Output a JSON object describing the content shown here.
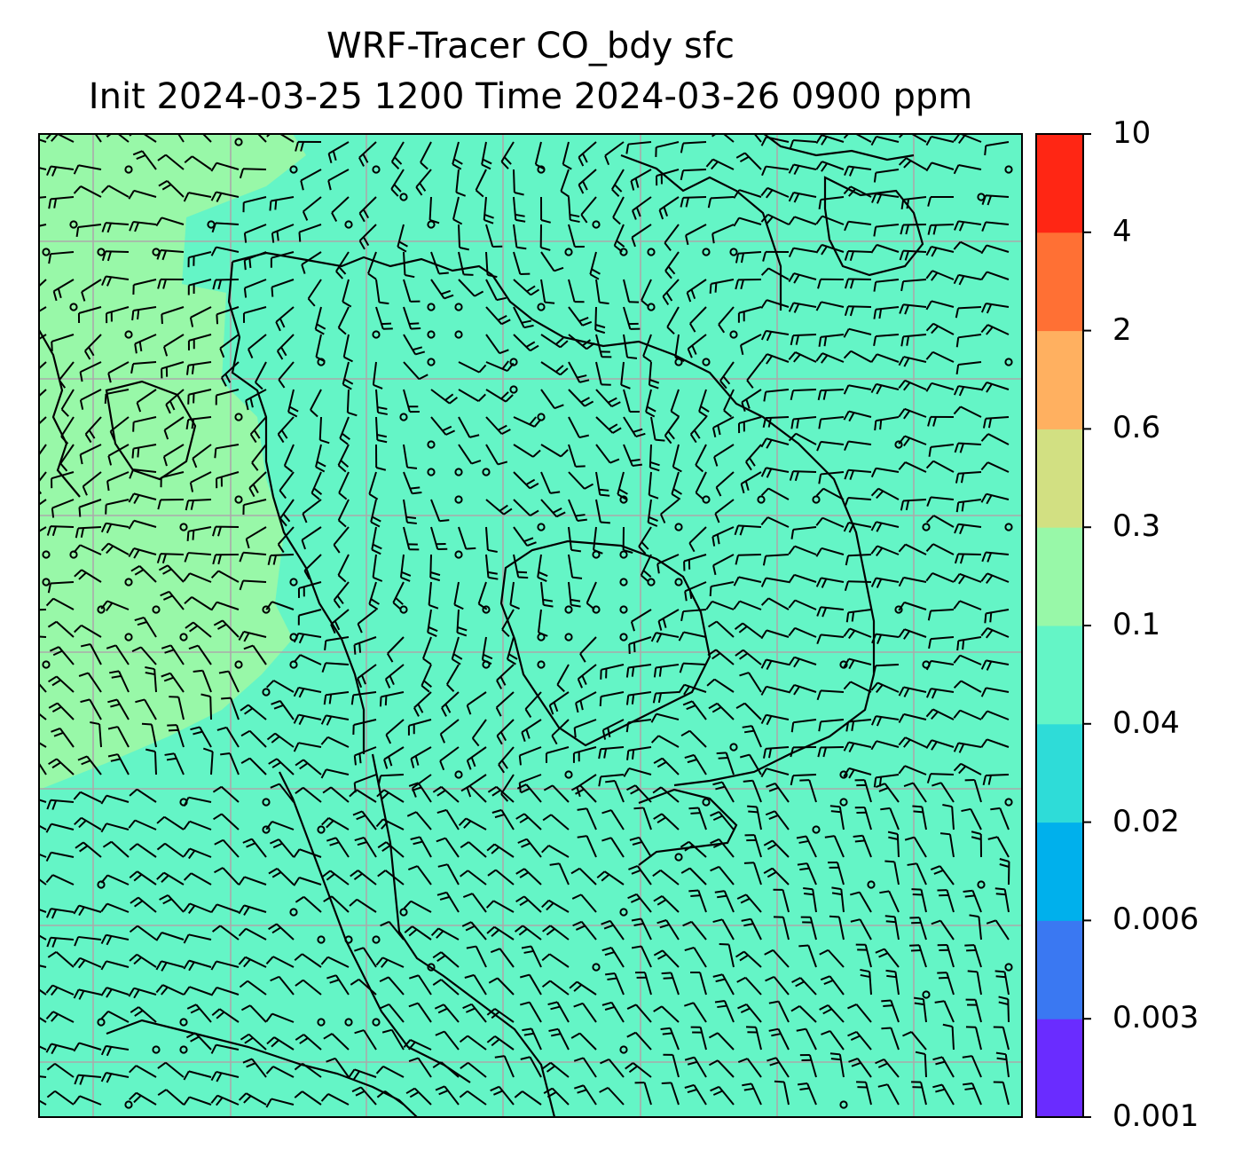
{
  "figure": {
    "title_line1": "WRF-Tracer CO_bdy sfc",
    "title_line2": "Init 2024-03-25 1200 Time 2024-03-26 0900 ppm"
  },
  "colorbar": {
    "levels": [
      "0.001",
      "0.003",
      "0.006",
      "0.02",
      "0.04",
      "0.1",
      "0.3",
      "0.6",
      "2",
      "4",
      "10"
    ],
    "colors": [
      "#6a2cff",
      "#3a78f2",
      "#00b0ec",
      "#2edcd8",
      "#64f5c6",
      "#98f8a8",
      "#d2e082",
      "#ffb060",
      "#ff7034",
      "#ff2614"
    ]
  },
  "map": {
    "field_colors": {
      "base": "#64f5c6",
      "elevated": "#98f8a8"
    },
    "gridline_color": "#aaaaaa",
    "contents": [
      "CO tracer concentration shading",
      "wind barbs",
      "calm-wind circles",
      "coastlines",
      "lat/lon gridlines"
    ]
  }
}
